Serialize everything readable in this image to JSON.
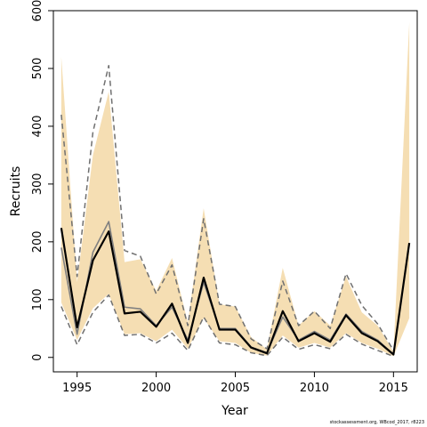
{
  "chart_data": {
    "type": "line",
    "xlabel": "Year",
    "ylabel": "Recruits",
    "xlim": [
      1993.5,
      2016.5
    ],
    "ylim": [
      -25,
      600
    ],
    "x_ticks": [
      1995,
      2000,
      2005,
      2010,
      2015
    ],
    "y_ticks": [
      0,
      100,
      200,
      300,
      400,
      500,
      600
    ],
    "x": [
      1994,
      1995,
      1996,
      1997,
      1998,
      1999,
      2000,
      2001,
      2002,
      2003,
      2004,
      2005,
      2006,
      2007,
      2008,
      2009,
      2010,
      2011,
      2012,
      2013,
      2014,
      2015,
      2016
    ],
    "series": [
      {
        "role": "estimate",
        "style": "solid",
        "color": "#000000",
        "values": [
          224,
          52,
          168,
          218,
          76,
          79,
          53,
          93,
          25,
          138,
          48,
          48,
          17,
          7,
          80,
          28,
          42,
          27,
          73,
          42,
          28,
          5,
          198
        ]
      },
      {
        "role": "comparison",
        "style": "solid",
        "color": "#808080",
        "values": [
          190,
          40,
          182,
          235,
          87,
          84,
          55,
          87,
          30,
          130,
          50,
          50,
          18,
          8,
          70,
          30,
          45,
          30,
          75,
          45,
          30,
          5,
          null
        ]
      },
      {
        "role": "comparison-upper",
        "style": "dashed",
        "color": "#707070",
        "values": [
          420,
          140,
          390,
          505,
          185,
          175,
          110,
          160,
          55,
          240,
          92,
          88,
          32,
          15,
          132,
          55,
          80,
          50,
          145,
          90,
          58,
          12,
          null
        ]
      },
      {
        "role": "comparison-lower",
        "style": "dashed",
        "color": "#707070",
        "values": [
          88,
          22,
          78,
          108,
          38,
          40,
          25,
          42,
          12,
          70,
          25,
          22,
          8,
          3,
          35,
          14,
          22,
          15,
          40,
          23,
          12,
          2,
          null
        ]
      }
    ],
    "band": {
      "color": "#f5deb3",
      "upper": [
        520,
        130,
        350,
        460,
        165,
        170,
        115,
        172,
        60,
        258,
        92,
        88,
        35,
        14,
        155,
        55,
        80,
        55,
        140,
        78,
        55,
        10,
        580
      ],
      "lower": [
        95,
        30,
        85,
        110,
        40,
        42,
        28,
        48,
        15,
        68,
        28,
        25,
        8,
        3,
        38,
        17,
        25,
        17,
        42,
        25,
        15,
        2,
        68
      ]
    }
  },
  "footnote": "stockassessment.org, WBcod_2017, r8223"
}
